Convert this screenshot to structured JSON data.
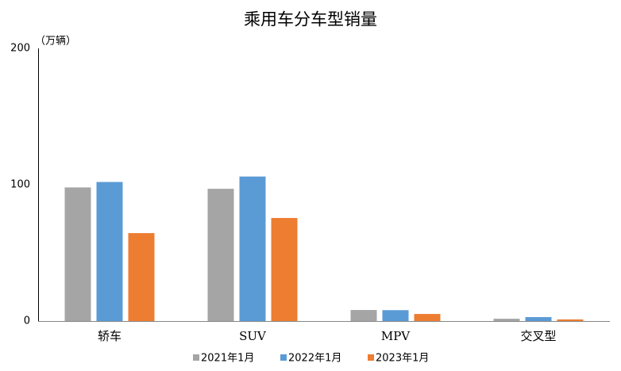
{
  "chart_data": {
    "type": "bar",
    "title": "乘用车分车型销量",
    "y_label": "（万辆）",
    "categories": [
      "轿车",
      "SUV",
      "MPV",
      "交叉型"
    ],
    "series": [
      {
        "name": "2021年1月",
        "color": "#a5a5a5",
        "values": [
          98,
          97,
          8.1,
          1.7
        ]
      },
      {
        "name": "2022年1月",
        "color": "#5b9bd5",
        "values": [
          102,
          106,
          8,
          2.9
        ]
      },
      {
        "name": "2023年1月",
        "color": "#ed7d31",
        "values": [
          64.5,
          75.6,
          5.2,
          1.2
        ]
      }
    ],
    "ylim": [
      0,
      200
    ],
    "yticks": [
      0,
      100,
      200
    ],
    "grid": false,
    "legend": "bottom"
  }
}
